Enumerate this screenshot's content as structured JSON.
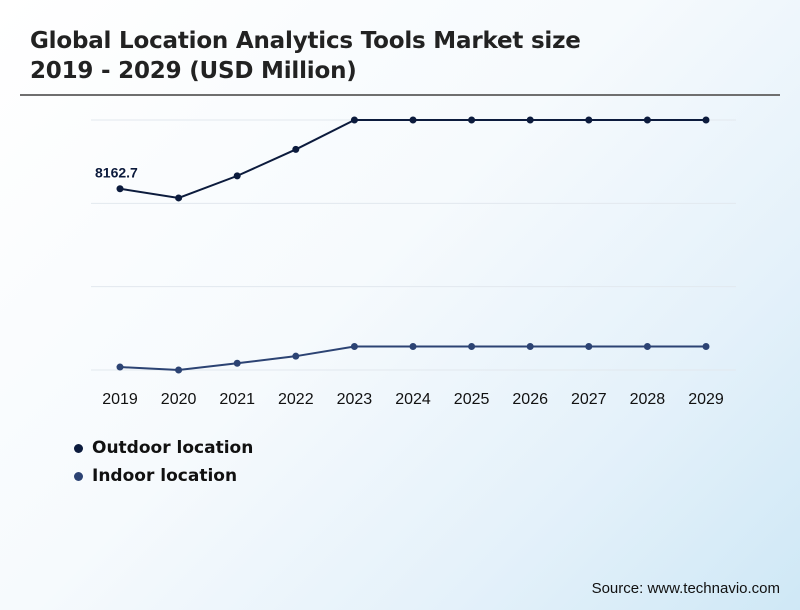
{
  "header": {
    "title_line1": "Global Location Analytics Tools Market size",
    "title_line2": "2019 - 2029 (USD Million)"
  },
  "chart_data": {
    "type": "line",
    "x": [
      "2019",
      "2020",
      "2021",
      "2022",
      "2023",
      "2024",
      "2025",
      "2026",
      "2027",
      "2028",
      "2029"
    ],
    "series": [
      {
        "name": "Outdoor location",
        "color": "#0c1b3d",
        "values": [
          8162.7,
          7850,
          8600,
          9500,
          10500,
          10500,
          10500,
          10500,
          10500,
          10500,
          10500
        ],
        "data_labels": [
          "8162.7",
          "",
          "",
          "",
          "",
          "",
          "",
          "",
          "",
          "",
          ""
        ]
      },
      {
        "name": "Indoor location",
        "color": "#2c4373",
        "values": [
          2100,
          2000,
          2230,
          2470,
          2800,
          2800,
          2800,
          2800,
          2800,
          2800,
          2800
        ]
      }
    ],
    "ylim": [
      2000,
      10500
    ],
    "grid": true,
    "legend_position": "bottom-left"
  },
  "legend": [
    {
      "label": "Outdoor location",
      "color": "#0c1b3d"
    },
    {
      "label": "Indoor location",
      "color": "#2c4373"
    }
  ],
  "footer": {
    "source": "Source: www.technavio.com"
  }
}
